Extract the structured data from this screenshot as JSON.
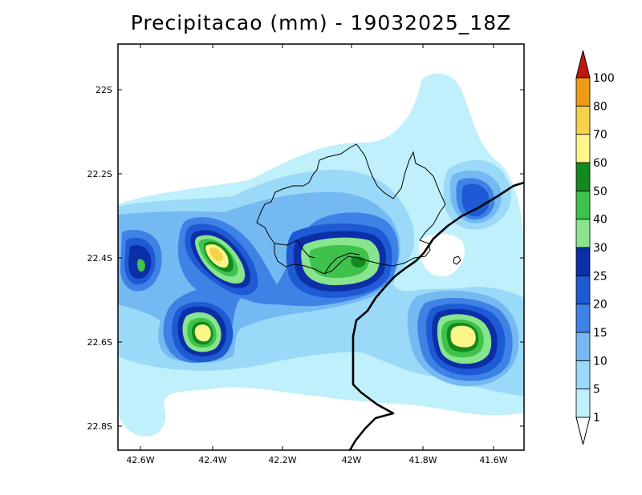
{
  "title": "Precipitacao (mm) - 19032025_18Z",
  "axes": {
    "x_ticks": [
      "42.6W",
      "42.4W",
      "42.2W",
      "42W",
      "41.8W",
      "41.6W"
    ],
    "y_ticks": [
      "22S",
      "22.2S",
      "22.4S",
      "22.6S",
      "22.8S"
    ]
  },
  "colorbar": {
    "levels": [
      "1",
      "5",
      "10",
      "15",
      "20",
      "25",
      "30",
      "40",
      "50",
      "60",
      "70",
      "80",
      "100"
    ],
    "colors": [
      "#bff0fb",
      "#9ad9f7",
      "#74b9f2",
      "#3f82e6",
      "#1d5ad4",
      "#0c2fa8",
      "#88e48d",
      "#3ec24c",
      "#128a1e",
      "#fbf58a",
      "#f5d24a",
      "#ef9a14",
      "#ee5a2a",
      "#c2180c"
    ]
  },
  "colors": {
    "frame": "#000000",
    "coastline": "#000000",
    "municipal_boundary": "#000000"
  }
}
